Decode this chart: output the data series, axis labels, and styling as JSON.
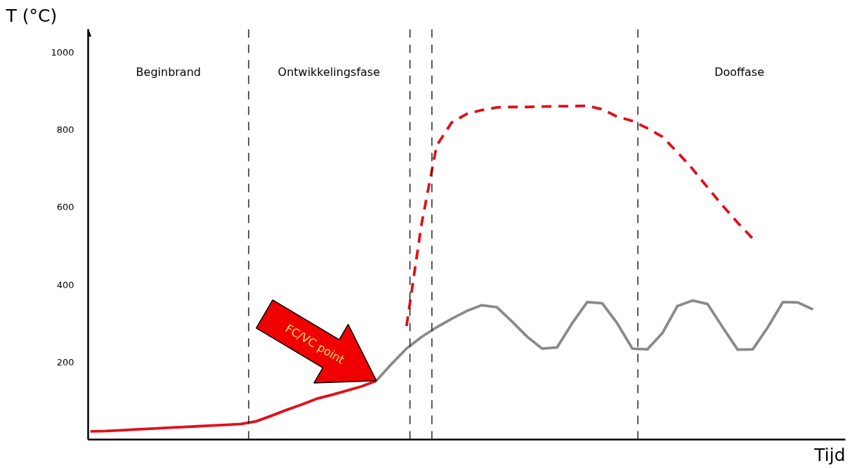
{
  "chart_data": {
    "type": "line",
    "xlabel": "Tijd",
    "ylabel": "T (°C)",
    "categories": [
      null,
      null,
      null,
      null,
      null,
      null,
      null,
      null,
      null,
      null,
      null,
      null,
      null,
      null,
      null,
      null,
      null,
      null,
      null,
      null,
      null,
      null,
      null,
      null,
      null,
      null,
      null,
      null,
      null,
      null,
      null,
      null,
      null,
      null,
      null,
      null,
      null,
      null,
      null,
      null,
      null,
      null,
      null,
      null,
      null,
      null,
      null,
      null,
      null,
      null,
      null
    ],
    "ylim": [
      0,
      1060
    ],
    "yticks": [
      200,
      400,
      600,
      800,
      1000
    ],
    "tick_labels": "y",
    "grid": false,
    "series": [
      {
        "color": "#e0101a",
        "line_style": "solid",
        "values": [
          21,
          22,
          24,
          26,
          28,
          30,
          32,
          34,
          36,
          38,
          40,
          47,
          61,
          76,
          90,
          105,
          115,
          126,
          137,
          152,
          null,
          null,
          null,
          null,
          null,
          null,
          null,
          null,
          null,
          null,
          null,
          null,
          null,
          null,
          null,
          null,
          null,
          null,
          null,
          null,
          null,
          null,
          null,
          null,
          null,
          null,
          null,
          null,
          null,
          null,
          null
        ]
      },
      {
        "color": "#8a8a8a",
        "line_style": "solid",
        "values": [
          null,
          null,
          null,
          null,
          null,
          null,
          null,
          null,
          null,
          null,
          null,
          null,
          null,
          null,
          null,
          null,
          null,
          null,
          null,
          152,
          195,
          235,
          265,
          290,
          312,
          332,
          347,
          342,
          305,
          266,
          235,
          238,
          300,
          355,
          352,
          300,
          235,
          233,
          275,
          345,
          359,
          350,
          290,
          232,
          233,
          290,
          355,
          354,
          336,
          null,
          null
        ]
      },
      {
        "color": "#e0101a",
        "line_style": "dashed",
        "values": [
          null,
          null,
          null,
          null,
          null,
          null,
          null,
          null,
          null,
          null,
          null,
          null,
          null,
          null,
          null,
          null,
          null,
          null,
          null,
          null,
          null,
          293,
          557,
          759,
          819,
          841,
          851,
          858,
          859,
          859,
          860,
          861,
          861,
          862,
          853,
          834,
          823,
          804,
          782,
          742,
          699,
          651,
          604,
          560,
          519,
          null,
          null,
          null,
          null,
          null,
          null
        ]
      }
    ],
    "annotations": [
      "Beginbrand",
      "Ontwikkelingsfase",
      "Dooffase",
      "FC/VC point"
    ]
  }
}
